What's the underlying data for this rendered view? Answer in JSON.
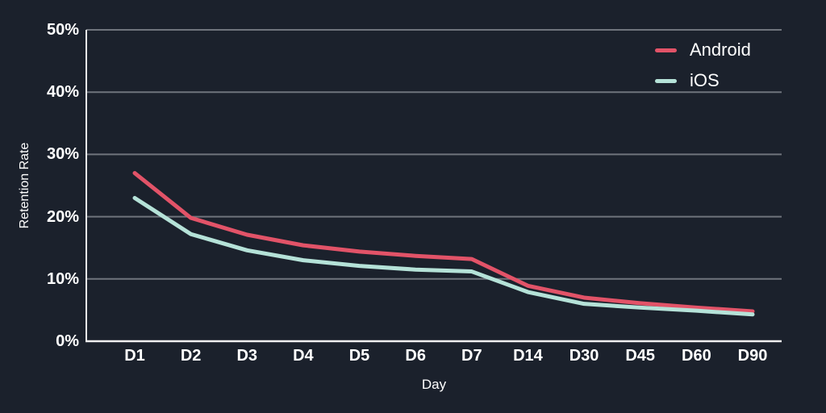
{
  "chart_data": {
    "type": "line",
    "title": "",
    "xlabel": "Day",
    "ylabel": "Retention Rate",
    "categories": [
      "D1",
      "D2",
      "D3",
      "D4",
      "D5",
      "D6",
      "D7",
      "D14",
      "D30",
      "D45",
      "D60",
      "D90"
    ],
    "series": [
      {
        "name": "Android",
        "color": "#e25368",
        "values": [
          27.0,
          19.8,
          17.1,
          15.4,
          14.4,
          13.7,
          13.2,
          8.9,
          7.0,
          6.1,
          5.4,
          4.8
        ]
      },
      {
        "name": "iOS",
        "color": "#b5e2d8",
        "values": [
          23.0,
          17.2,
          14.6,
          13.0,
          12.1,
          11.5,
          11.2,
          7.9,
          6.0,
          5.4,
          4.9,
          4.3
        ]
      }
    ],
    "ylim": [
      0,
      50
    ],
    "ytick_values": [
      0,
      10,
      20,
      30,
      40,
      50
    ],
    "ytick_labels": [
      "0%",
      "10%",
      "20%",
      "30%",
      "40%",
      "50%"
    ],
    "grid": "horizontal",
    "legend_position": "top-right"
  },
  "colors": {
    "background": "#1b212c",
    "gridline": "#6f747c",
    "axis": "#f0f0f0",
    "text": "#ffffff"
  }
}
